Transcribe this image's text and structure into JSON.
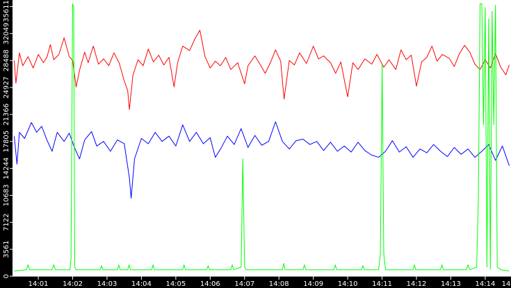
{
  "chart_data": {
    "type": "line",
    "title": "",
    "xlabel": "",
    "ylabel": "",
    "grid": false,
    "legend": "none",
    "background": "#ffffff",
    "axis_background": "#000000",
    "axis_text_color": "#ffffff",
    "ylim": [
      0,
      36300
    ],
    "y_ticks": [
      0,
      3561,
      7122,
      10683,
      14244,
      17805,
      21366,
      24927,
      28488,
      32049,
      35611
    ],
    "x_ticks": [
      "14:01",
      "14:02",
      "14:03",
      "14:04",
      "14:05",
      "14:06",
      "14:07",
      "14:08",
      "14:09",
      "14:10",
      "14:11",
      "14:12",
      "14:13",
      "14:14",
      "14"
    ],
    "x_range_minutes": [
      0.25,
      14.75
    ],
    "series": [
      {
        "color": "#ff0000",
        "values": [
          [
            0.3,
            28500
          ],
          [
            0.35,
            25500
          ],
          [
            0.45,
            29500
          ],
          [
            0.55,
            27800
          ],
          [
            0.7,
            29000
          ],
          [
            0.85,
            27500
          ],
          [
            1.0,
            29300
          ],
          [
            1.15,
            28200
          ],
          [
            1.25,
            28900
          ],
          [
            1.35,
            30600
          ],
          [
            1.45,
            28600
          ],
          [
            1.6,
            29300
          ],
          [
            1.75,
            31500
          ],
          [
            1.9,
            29000
          ],
          [
            2.0,
            28500
          ],
          [
            2.1,
            25000
          ],
          [
            2.2,
            27200
          ],
          [
            2.35,
            29600
          ],
          [
            2.45,
            28200
          ],
          [
            2.6,
            30400
          ],
          [
            2.75,
            28000
          ],
          [
            2.9,
            28700
          ],
          [
            3.05,
            27800
          ],
          [
            3.2,
            29500
          ],
          [
            3.35,
            28200
          ],
          [
            3.5,
            25800
          ],
          [
            3.6,
            24500
          ],
          [
            3.65,
            22000
          ],
          [
            3.75,
            26500
          ],
          [
            3.9,
            28600
          ],
          [
            4.05,
            27800
          ],
          [
            4.2,
            30000
          ],
          [
            4.35,
            28300
          ],
          [
            4.5,
            29200
          ],
          [
            4.65,
            27900
          ],
          [
            4.8,
            28900
          ],
          [
            4.95,
            25000
          ],
          [
            5.05,
            28200
          ],
          [
            5.2,
            30400
          ],
          [
            5.4,
            29800
          ],
          [
            5.55,
            31300
          ],
          [
            5.7,
            32500
          ],
          [
            5.85,
            29000
          ],
          [
            6.0,
            27500
          ],
          [
            6.15,
            28400
          ],
          [
            6.3,
            27800
          ],
          [
            6.45,
            28900
          ],
          [
            6.6,
            27300
          ],
          [
            6.8,
            28200
          ],
          [
            7.0,
            25400
          ],
          [
            7.1,
            27800
          ],
          [
            7.3,
            29100
          ],
          [
            7.45,
            28000
          ],
          [
            7.6,
            26800
          ],
          [
            7.75,
            28200
          ],
          [
            7.9,
            29900
          ],
          [
            8.05,
            28400
          ],
          [
            8.15,
            23400
          ],
          [
            8.3,
            28500
          ],
          [
            8.45,
            27900
          ],
          [
            8.6,
            29500
          ],
          [
            8.8,
            28100
          ],
          [
            9.0,
            30400
          ],
          [
            9.15,
            28700
          ],
          [
            9.3,
            29100
          ],
          [
            9.5,
            28200
          ],
          [
            9.65,
            26800
          ],
          [
            9.8,
            28300
          ],
          [
            10.0,
            23700
          ],
          [
            10.15,
            28200
          ],
          [
            10.3,
            27300
          ],
          [
            10.5,
            28700
          ],
          [
            10.7,
            28000
          ],
          [
            10.85,
            29300
          ],
          [
            11.05,
            27600
          ],
          [
            11.2,
            28600
          ],
          [
            11.4,
            27300
          ],
          [
            11.55,
            29900
          ],
          [
            11.7,
            28600
          ],
          [
            11.85,
            29200
          ],
          [
            12.0,
            25100
          ],
          [
            12.15,
            28300
          ],
          [
            12.3,
            28900
          ],
          [
            12.45,
            30400
          ],
          [
            12.6,
            28400
          ],
          [
            12.75,
            29300
          ],
          [
            12.95,
            28800
          ],
          [
            13.1,
            27700
          ],
          [
            13.25,
            29400
          ],
          [
            13.4,
            30500
          ],
          [
            13.55,
            29600
          ],
          [
            13.7,
            28000
          ],
          [
            13.85,
            27300
          ],
          [
            14.0,
            28600
          ],
          [
            14.15,
            27500
          ],
          [
            14.3,
            29400
          ],
          [
            14.45,
            27600
          ],
          [
            14.6,
            26600
          ],
          [
            14.7,
            27900
          ]
        ]
      },
      {
        "color": "#0000ff",
        "values": [
          [
            0.3,
            18500
          ],
          [
            0.38,
            14800
          ],
          [
            0.45,
            19000
          ],
          [
            0.6,
            18200
          ],
          [
            0.8,
            20300
          ],
          [
            0.95,
            19000
          ],
          [
            1.1,
            19800
          ],
          [
            1.25,
            18000
          ],
          [
            1.4,
            16500
          ],
          [
            1.55,
            19000
          ],
          [
            1.75,
            17800
          ],
          [
            1.9,
            18900
          ],
          [
            2.05,
            17000
          ],
          [
            2.2,
            15500
          ],
          [
            2.35,
            18000
          ],
          [
            2.55,
            19100
          ],
          [
            2.7,
            17200
          ],
          [
            2.9,
            17800
          ],
          [
            3.1,
            16500
          ],
          [
            3.3,
            18000
          ],
          [
            3.5,
            17500
          ],
          [
            3.65,
            13000
          ],
          [
            3.7,
            10300
          ],
          [
            3.8,
            15500
          ],
          [
            4.0,
            18200
          ],
          [
            4.2,
            17500
          ],
          [
            4.4,
            19000
          ],
          [
            4.6,
            17800
          ],
          [
            4.8,
            18500
          ],
          [
            5.0,
            17200
          ],
          [
            5.2,
            20000
          ],
          [
            5.4,
            17800
          ],
          [
            5.6,
            19000
          ],
          [
            5.8,
            17500
          ],
          [
            6.0,
            18300
          ],
          [
            6.15,
            15700
          ],
          [
            6.3,
            16800
          ],
          [
            6.5,
            18500
          ],
          [
            6.7,
            17400
          ],
          [
            6.9,
            19500
          ],
          [
            7.1,
            17000
          ],
          [
            7.3,
            18600
          ],
          [
            7.5,
            17300
          ],
          [
            7.7,
            17800
          ],
          [
            7.9,
            20400
          ],
          [
            8.1,
            17800
          ],
          [
            8.3,
            16800
          ],
          [
            8.5,
            17900
          ],
          [
            8.7,
            18100
          ],
          [
            8.9,
            17400
          ],
          [
            9.1,
            17800
          ],
          [
            9.3,
            16600
          ],
          [
            9.5,
            17700
          ],
          [
            9.7,
            16500
          ],
          [
            9.9,
            17200
          ],
          [
            10.1,
            16400
          ],
          [
            10.3,
            17700
          ],
          [
            10.5,
            16600
          ],
          [
            10.7,
            16000
          ],
          [
            10.9,
            15700
          ],
          [
            11.1,
            16500
          ],
          [
            11.3,
            17900
          ],
          [
            11.5,
            16400
          ],
          [
            11.7,
            17100
          ],
          [
            11.9,
            15700
          ],
          [
            12.1,
            16800
          ],
          [
            12.3,
            16300
          ],
          [
            12.5,
            17400
          ],
          [
            12.7,
            16500
          ],
          [
            12.9,
            15800
          ],
          [
            13.1,
            17000
          ],
          [
            13.3,
            16100
          ],
          [
            13.5,
            16800
          ],
          [
            13.7,
            15700
          ],
          [
            13.9,
            16500
          ],
          [
            14.1,
            17400
          ],
          [
            14.3,
            15300
          ],
          [
            14.5,
            17200
          ],
          [
            14.7,
            14600
          ]
        ]
      },
      {
        "color": "#00ff00",
        "values": [
          [
            0.3,
            700
          ],
          [
            0.65,
            850
          ],
          [
            0.7,
            1500
          ],
          [
            0.75,
            850
          ],
          [
            1.4,
            850
          ],
          [
            1.45,
            1500
          ],
          [
            1.5,
            850
          ],
          [
            1.92,
            850
          ],
          [
            1.95,
            2200
          ],
          [
            2.0,
            36000
          ],
          [
            2.03,
            35500
          ],
          [
            2.06,
            1200
          ],
          [
            2.1,
            850
          ],
          [
            2.8,
            850
          ],
          [
            2.84,
            1400
          ],
          [
            2.88,
            850
          ],
          [
            3.3,
            850
          ],
          [
            3.34,
            1500
          ],
          [
            3.38,
            850
          ],
          [
            3.6,
            850
          ],
          [
            3.64,
            1500
          ],
          [
            3.68,
            850
          ],
          [
            4.3,
            850
          ],
          [
            4.34,
            1500
          ],
          [
            4.38,
            850
          ],
          [
            5.2,
            850
          ],
          [
            5.24,
            1500
          ],
          [
            5.28,
            850
          ],
          [
            5.9,
            850
          ],
          [
            5.94,
            1400
          ],
          [
            5.98,
            850
          ],
          [
            6.6,
            850
          ],
          [
            6.64,
            1500
          ],
          [
            6.68,
            850
          ],
          [
            6.9,
            1200
          ],
          [
            6.95,
            15500
          ],
          [
            7.0,
            1200
          ],
          [
            7.05,
            850
          ],
          [
            8.1,
            850
          ],
          [
            8.14,
            1700
          ],
          [
            8.18,
            850
          ],
          [
            8.7,
            850
          ],
          [
            8.74,
            1500
          ],
          [
            8.78,
            850
          ],
          [
            9.6,
            850
          ],
          [
            9.64,
            1500
          ],
          [
            9.68,
            850
          ],
          [
            10.4,
            850
          ],
          [
            10.44,
            1400
          ],
          [
            10.48,
            850
          ],
          [
            10.9,
            850
          ],
          [
            10.95,
            3000
          ],
          [
            11.0,
            28000
          ],
          [
            11.05,
            3000
          ],
          [
            11.1,
            850
          ],
          [
            11.9,
            850
          ],
          [
            11.94,
            1500
          ],
          [
            11.98,
            850
          ],
          [
            12.7,
            850
          ],
          [
            12.74,
            1500
          ],
          [
            12.78,
            850
          ],
          [
            13.45,
            850
          ],
          [
            13.5,
            1500
          ],
          [
            13.55,
            850
          ],
          [
            13.75,
            1200
          ],
          [
            13.8,
            10000
          ],
          [
            13.85,
            36000
          ],
          [
            13.9,
            36000
          ],
          [
            13.95,
            20000
          ],
          [
            14.0,
            35500
          ],
          [
            14.05,
            1200
          ],
          [
            14.1,
            34000
          ],
          [
            14.15,
            900
          ],
          [
            14.2,
            35000
          ],
          [
            14.25,
            20000
          ],
          [
            14.3,
            35800
          ],
          [
            14.35,
            1200
          ],
          [
            14.45,
            850
          ],
          [
            14.7,
            700
          ]
        ]
      }
    ]
  }
}
